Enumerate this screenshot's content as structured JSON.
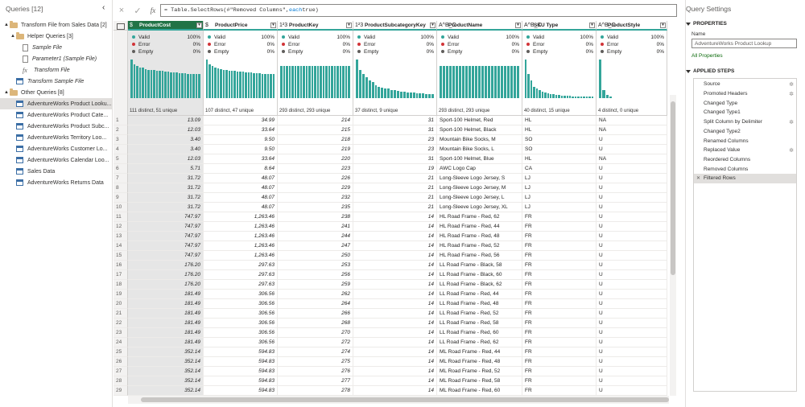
{
  "queries_pane": {
    "title": "Queries [12]",
    "items": [
      {
        "label": "Transform File from Sales Data [2]",
        "kind": "folder",
        "level": 0,
        "arrow": "▲"
      },
      {
        "label": "Helper Queries [3]",
        "kind": "folder",
        "level": 1,
        "arrow": "▲"
      },
      {
        "label": "Sample File",
        "kind": "doc",
        "level": 2,
        "italic": true
      },
      {
        "label": "Parameter1 (Sample File)",
        "kind": "doc",
        "level": 2,
        "italic": true
      },
      {
        "label": "Transform File",
        "kind": "fx",
        "level": 2,
        "italic": true
      },
      {
        "label": "Transform Sample File",
        "kind": "table",
        "level": 1,
        "italic": true
      },
      {
        "label": "Other Queries [8]",
        "kind": "folder",
        "level": 0,
        "arrow": "▲"
      },
      {
        "label": "AdventureWorks Product Looku...",
        "kind": "table",
        "level": 1,
        "selected": true
      },
      {
        "label": "AdventureWorks Product Cate...",
        "kind": "table",
        "level": 1
      },
      {
        "label": "AdventureWorks Product Subc...",
        "kind": "table",
        "level": 1
      },
      {
        "label": "AdventureWorks Territory Loo...",
        "kind": "table",
        "level": 1
      },
      {
        "label": "AdventureWorks Customer Lo...",
        "kind": "table",
        "level": 1
      },
      {
        "label": "AdventureWorks Calendar Loo...",
        "kind": "table",
        "level": 1
      },
      {
        "label": "Sales Data",
        "kind": "table",
        "level": 1
      },
      {
        "label": "AdventureWorks Returns Data",
        "kind": "table",
        "level": 1
      }
    ]
  },
  "formula_bar": {
    "cancel_icon": "×",
    "commit_icon": "✓",
    "fx_label": "fx",
    "prefix": "= Table.SelectRows(#\"Removed Columns\", ",
    "keyword": "each",
    "suffix": " true)"
  },
  "columns": [
    {
      "name": "ProductCost",
      "type_icon": "$",
      "selected": true,
      "align": "r",
      "italic": true,
      "stats": "111 distinct, 51 unique",
      "bars": [
        48,
        42,
        40,
        38,
        38,
        36,
        35,
        35,
        35,
        34,
        34,
        34,
        33,
        33,
        32,
        32,
        32,
        31,
        31,
        31,
        30,
        30,
        30,
        30,
        30
      ]
    },
    {
      "name": "ProductPrice",
      "type_icon": "$",
      "align": "r",
      "italic": true,
      "stats": "107 distinct, 47 unique",
      "bars": [
        48,
        42,
        40,
        38,
        37,
        36,
        35,
        35,
        34,
        34,
        34,
        33,
        33,
        33,
        32,
        32,
        32,
        31,
        31,
        31,
        30,
        30,
        30,
        30,
        30
      ]
    },
    {
      "name": "ProductKey",
      "type_icon": "1²3",
      "align": "r",
      "italic": true,
      "stats": "293 distinct, 293 unique",
      "bars": [
        40,
        40,
        40,
        40,
        40,
        40,
        40,
        40,
        40,
        40,
        40,
        40,
        40,
        40,
        40,
        40,
        40,
        40,
        40,
        40,
        40,
        40,
        40,
        40,
        40
      ]
    },
    {
      "name": "ProductSubcategoryKey",
      "type_icon": "1²3",
      "align": "r",
      "italic": true,
      "stats": "37 distinct, 9 unique",
      "bars": [
        48,
        35,
        30,
        26,
        22,
        20,
        16,
        14,
        13,
        12,
        12,
        10,
        10,
        9,
        8,
        8,
        7,
        7,
        7,
        6,
        6,
        6,
        5,
        5,
        5
      ]
    },
    {
      "name": "ProductName",
      "type_icon": "A^B_C",
      "align": "l",
      "stats": "293 distinct, 293 unique",
      "bars": [
        40,
        40,
        40,
        40,
        40,
        40,
        40,
        40,
        40,
        40,
        40,
        40,
        40,
        40,
        40,
        40,
        40,
        40,
        40,
        40,
        40,
        40,
        40,
        40,
        40
      ]
    },
    {
      "name": "SKU Type",
      "type_icon": "A^B_C",
      "align": "l",
      "stats": "40 distinct, 15 unique",
      "bars": [
        48,
        30,
        22,
        14,
        12,
        10,
        8,
        7,
        6,
        5,
        5,
        4,
        4,
        3,
        3,
        3,
        3,
        2,
        2,
        2,
        2,
        2,
        2,
        2,
        2
      ]
    },
    {
      "name": "ProductStyle",
      "type_icon": "A^B_C",
      "align": "l",
      "stats": "4 distinct, 0 unique",
      "bars": [
        48,
        10,
        4,
        2
      ]
    }
  ],
  "quality_labels": {
    "valid": "Valid",
    "error": "Error",
    "empty": "Empty",
    "valid_pct": "100%",
    "error_pct": "0%",
    "empty_pct": "0%"
  },
  "rows": [
    [
      "13.09",
      "34.99",
      "214",
      "31",
      "Sport-100 Helmet, Red",
      "HL",
      "NA"
    ],
    [
      "12.03",
      "33.64",
      "215",
      "31",
      "Sport-100 Helmet, Black",
      "HL",
      "NA"
    ],
    [
      "3.40",
      "9.50",
      "218",
      "23",
      "Mountain Bike Socks, M",
      "SO",
      "U"
    ],
    [
      "3.40",
      "9.50",
      "219",
      "23",
      "Mountain Bike Socks, L",
      "SO",
      "U"
    ],
    [
      "12.03",
      "33.64",
      "220",
      "31",
      "Sport-100 Helmet, Blue",
      "HL",
      "NA"
    ],
    [
      "5.71",
      "8.64",
      "223",
      "19",
      "AWC Logo Cap",
      "CA",
      "U"
    ],
    [
      "31.72",
      "48.07",
      "226",
      "21",
      "Long-Sleeve Logo Jersey, S",
      "LJ",
      "U"
    ],
    [
      "31.72",
      "48.07",
      "229",
      "21",
      "Long-Sleeve Logo Jersey, M",
      "LJ",
      "U"
    ],
    [
      "31.72",
      "48.07",
      "232",
      "21",
      "Long-Sleeve Logo Jersey, L",
      "LJ",
      "U"
    ],
    [
      "31.72",
      "48.07",
      "235",
      "21",
      "Long-Sleeve Logo Jersey, XL",
      "LJ",
      "U"
    ],
    [
      "747.97",
      "1,263.46",
      "238",
      "14",
      "HL Road Frame - Red, 62",
      "FR",
      "U"
    ],
    [
      "747.97",
      "1,263.46",
      "241",
      "14",
      "HL Road Frame - Red, 44",
      "FR",
      "U"
    ],
    [
      "747.97",
      "1,263.46",
      "244",
      "14",
      "HL Road Frame - Red, 48",
      "FR",
      "U"
    ],
    [
      "747.97",
      "1,263.46",
      "247",
      "14",
      "HL Road Frame - Red, 52",
      "FR",
      "U"
    ],
    [
      "747.97",
      "1,263.46",
      "250",
      "14",
      "HL Road Frame - Red, 56",
      "FR",
      "U"
    ],
    [
      "176.20",
      "297.63",
      "253",
      "14",
      "LL Road Frame - Black, 58",
      "FR",
      "U"
    ],
    [
      "176.20",
      "297.63",
      "256",
      "14",
      "LL Road Frame - Black, 60",
      "FR",
      "U"
    ],
    [
      "176.20",
      "297.63",
      "259",
      "14",
      "LL Road Frame - Black, 62",
      "FR",
      "U"
    ],
    [
      "181.49",
      "306.56",
      "262",
      "14",
      "LL Road Frame - Red, 44",
      "FR",
      "U"
    ],
    [
      "181.49",
      "306.56",
      "264",
      "14",
      "LL Road Frame - Red, 48",
      "FR",
      "U"
    ],
    [
      "181.49",
      "306.56",
      "266",
      "14",
      "LL Road Frame - Red, 52",
      "FR",
      "U"
    ],
    [
      "181.49",
      "306.56",
      "268",
      "14",
      "LL Road Frame - Red, 58",
      "FR",
      "U"
    ],
    [
      "181.49",
      "306.56",
      "270",
      "14",
      "LL Road Frame - Red, 60",
      "FR",
      "U"
    ],
    [
      "181.49",
      "306.56",
      "272",
      "14",
      "LL Road Frame - Red, 62",
      "FR",
      "U"
    ],
    [
      "352.14",
      "594.83",
      "274",
      "14",
      "ML Road Frame - Red, 44",
      "FR",
      "U"
    ],
    [
      "352.14",
      "594.83",
      "275",
      "14",
      "ML Road Frame - Red, 48",
      "FR",
      "U"
    ],
    [
      "352.14",
      "594.83",
      "276",
      "14",
      "ML Road Frame - Red, 52",
      "FR",
      "U"
    ],
    [
      "352.14",
      "594.83",
      "277",
      "14",
      "ML Road Frame - Red, 58",
      "FR",
      "U"
    ],
    [
      "352.14",
      "594.83",
      "278",
      "14",
      "ML Road Frame - Red, 60",
      "FR",
      "U"
    ],
    [
      "176.20",
      "297.63",
      "279",
      "14",
      "LL Road Frame - Black, 44",
      "FR",
      "U"
    ],
    [
      "176.20",
      "297.63",
      "280",
      "14",
      "LL Road Frame - Black, 48",
      "FR",
      "U"
    ]
  ],
  "settings_pane": {
    "title": "Query Settings",
    "properties_header": "PROPERTIES",
    "name_label": "Name",
    "name_value": "AdventureWorks Product Lookup",
    "all_properties": "All Properties",
    "steps_header": "APPLIED STEPS",
    "steps": [
      {
        "label": "Source",
        "gear": true
      },
      {
        "label": "Promoted Headers",
        "gear": true
      },
      {
        "label": "Changed Type"
      },
      {
        "label": "Changed Type1"
      },
      {
        "label": "Split Column by Delimiter",
        "gear": true
      },
      {
        "label": "Changed Type2"
      },
      {
        "label": "Renamed Columns"
      },
      {
        "label": "Replaced Value",
        "gear": true
      },
      {
        "label": "Reordered Columns"
      },
      {
        "label": "Removed Columns"
      },
      {
        "label": "Filtered Rows",
        "selected": true
      }
    ],
    "gear_icon": "✲",
    "delete_icon": "✕"
  },
  "colors": {
    "accent": "#33a59a",
    "selected_col": "#217346",
    "valid": "#33a59a",
    "error": "#d13438",
    "empty": "#605e5c"
  }
}
